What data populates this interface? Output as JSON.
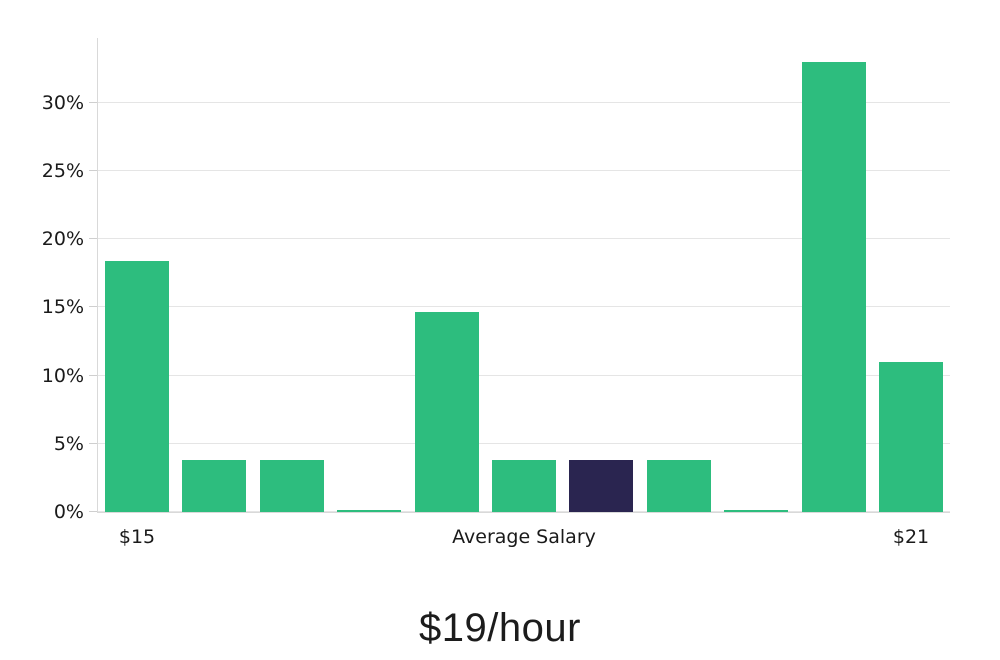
{
  "chart_data": {
    "type": "bar",
    "title": "$19/hour",
    "x_axis_title": "Average Salary",
    "x_tick_labels": [
      "$15",
      "$21"
    ],
    "y_ticks": [
      {
        "value": 0,
        "label": "0%"
      },
      {
        "value": 5,
        "label": "5%"
      },
      {
        "value": 10,
        "label": "10%"
      },
      {
        "value": 15,
        "label": "15%"
      },
      {
        "value": 20,
        "label": "20%"
      },
      {
        "value": 25,
        "label": "25%"
      },
      {
        "value": 30,
        "label": "30%"
      }
    ],
    "ylim": [
      0,
      34.75
    ],
    "ylabel": "",
    "xlabel": "Average Salary",
    "values": [
      18.4,
      3.8,
      3.8,
      0.15,
      14.7,
      3.8,
      3.8,
      3.8,
      0.15,
      33.0,
      11.0
    ],
    "highlighted_index": 6,
    "legend": "none",
    "grid": "horizontal",
    "colors": {
      "bar": "#2dbd7e",
      "highlight": "#2a2550",
      "gridline": "#e5e5e5",
      "axis_line": "#d9d9d9",
      "tick_mark": "#cfcfcf",
      "text": "#1a1a1a",
      "background": "#ffffff"
    }
  }
}
